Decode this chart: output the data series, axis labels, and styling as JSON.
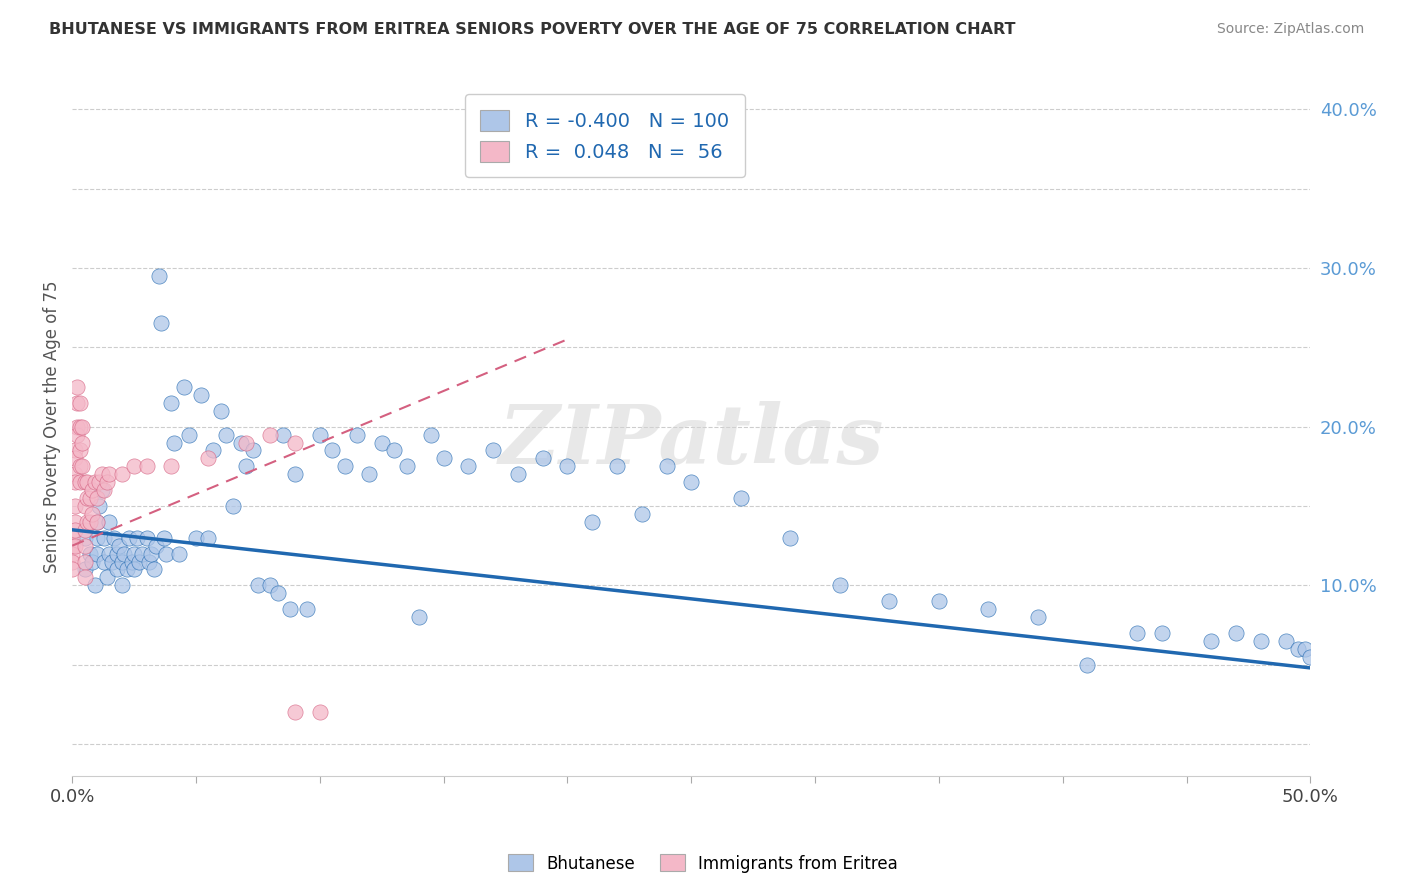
{
  "title": "BHUTANESE VS IMMIGRANTS FROM ERITREA SENIORS POVERTY OVER THE AGE OF 75 CORRELATION CHART",
  "source": "Source: ZipAtlas.com",
  "ylabel": "Seniors Poverty Over the Age of 75",
  "xlim": [
    0.0,
    0.5
  ],
  "ylim": [
    -0.02,
    0.42
  ],
  "xticks": [
    0.0,
    0.05,
    0.1,
    0.15,
    0.2,
    0.25,
    0.3,
    0.35,
    0.4,
    0.45,
    0.5
  ],
  "yticks": [
    0.0,
    0.05,
    0.1,
    0.15,
    0.2,
    0.25,
    0.3,
    0.35,
    0.4
  ],
  "blue_color": "#aec6e8",
  "pink_color": "#f4b8c8",
  "blue_line_color": "#2068b0",
  "pink_line_color": "#d46080",
  "R_blue": -0.4,
  "N_blue": 100,
  "R_pink": 0.048,
  "N_pink": 56,
  "legend_label_blue": "Bhutanese",
  "legend_label_pink": "Immigrants from Eritrea",
  "watermark": "ZIPatlas",
  "blue_trend_x0": 0.0,
  "blue_trend_x1": 0.5,
  "blue_trend_y0": 0.135,
  "blue_trend_y1": 0.048,
  "pink_trend_x0": 0.0,
  "pink_trend_x1": 0.2,
  "pink_trend_y0": 0.125,
  "pink_trend_y1": 0.255,
  "blue_x": [
    0.005,
    0.005,
    0.007,
    0.008,
    0.009,
    0.01,
    0.01,
    0.01,
    0.011,
    0.012,
    0.013,
    0.013,
    0.014,
    0.015,
    0.015,
    0.016,
    0.017,
    0.018,
    0.018,
    0.019,
    0.02,
    0.02,
    0.021,
    0.022,
    0.023,
    0.024,
    0.025,
    0.025,
    0.026,
    0.027,
    0.028,
    0.03,
    0.031,
    0.032,
    0.033,
    0.034,
    0.035,
    0.036,
    0.037,
    0.038,
    0.04,
    0.041,
    0.043,
    0.045,
    0.047,
    0.05,
    0.052,
    0.055,
    0.057,
    0.06,
    0.062,
    0.065,
    0.068,
    0.07,
    0.073,
    0.075,
    0.08,
    0.083,
    0.085,
    0.088,
    0.09,
    0.095,
    0.1,
    0.105,
    0.11,
    0.115,
    0.12,
    0.125,
    0.13,
    0.135,
    0.14,
    0.145,
    0.15,
    0.16,
    0.17,
    0.18,
    0.19,
    0.2,
    0.21,
    0.22,
    0.23,
    0.24,
    0.25,
    0.27,
    0.29,
    0.31,
    0.33,
    0.35,
    0.37,
    0.39,
    0.41,
    0.43,
    0.44,
    0.46,
    0.47,
    0.48,
    0.49,
    0.495,
    0.498,
    0.5
  ],
  "blue_y": [
    0.13,
    0.11,
    0.12,
    0.115,
    0.1,
    0.14,
    0.13,
    0.12,
    0.15,
    0.16,
    0.115,
    0.13,
    0.105,
    0.12,
    0.14,
    0.115,
    0.13,
    0.12,
    0.11,
    0.125,
    0.1,
    0.115,
    0.12,
    0.11,
    0.13,
    0.115,
    0.12,
    0.11,
    0.13,
    0.115,
    0.12,
    0.13,
    0.115,
    0.12,
    0.11,
    0.125,
    0.295,
    0.265,
    0.13,
    0.12,
    0.215,
    0.19,
    0.12,
    0.225,
    0.195,
    0.13,
    0.22,
    0.13,
    0.185,
    0.21,
    0.195,
    0.15,
    0.19,
    0.175,
    0.185,
    0.1,
    0.1,
    0.095,
    0.195,
    0.085,
    0.17,
    0.085,
    0.195,
    0.185,
    0.175,
    0.195,
    0.17,
    0.19,
    0.185,
    0.175,
    0.08,
    0.195,
    0.18,
    0.175,
    0.185,
    0.17,
    0.18,
    0.175,
    0.14,
    0.175,
    0.145,
    0.175,
    0.165,
    0.155,
    0.13,
    0.1,
    0.09,
    0.09,
    0.085,
    0.08,
    0.05,
    0.07,
    0.07,
    0.065,
    0.07,
    0.065,
    0.065,
    0.06,
    0.06,
    0.055
  ],
  "pink_x": [
    0.0,
    0.0,
    0.0,
    0.0,
    0.0,
    0.001,
    0.001,
    0.001,
    0.001,
    0.001,
    0.001,
    0.001,
    0.001,
    0.002,
    0.002,
    0.002,
    0.002,
    0.003,
    0.003,
    0.003,
    0.003,
    0.003,
    0.004,
    0.004,
    0.004,
    0.005,
    0.005,
    0.005,
    0.005,
    0.005,
    0.005,
    0.006,
    0.006,
    0.006,
    0.007,
    0.007,
    0.008,
    0.008,
    0.009,
    0.01,
    0.01,
    0.011,
    0.012,
    0.013,
    0.014,
    0.015,
    0.02,
    0.025,
    0.03,
    0.04,
    0.055,
    0.07,
    0.08,
    0.09,
    0.09,
    0.1
  ],
  "pink_y": [
    0.13,
    0.125,
    0.12,
    0.115,
    0.11,
    0.185,
    0.18,
    0.17,
    0.165,
    0.15,
    0.14,
    0.135,
    0.125,
    0.225,
    0.215,
    0.2,
    0.195,
    0.215,
    0.2,
    0.185,
    0.175,
    0.165,
    0.2,
    0.19,
    0.175,
    0.165,
    0.15,
    0.135,
    0.125,
    0.115,
    0.105,
    0.165,
    0.155,
    0.14,
    0.155,
    0.14,
    0.16,
    0.145,
    0.165,
    0.155,
    0.14,
    0.165,
    0.17,
    0.16,
    0.165,
    0.17,
    0.17,
    0.175,
    0.175,
    0.175,
    0.18,
    0.19,
    0.195,
    0.19,
    0.02,
    0.02
  ],
  "background_color": "#ffffff",
  "grid_color": "#c8c8c8"
}
